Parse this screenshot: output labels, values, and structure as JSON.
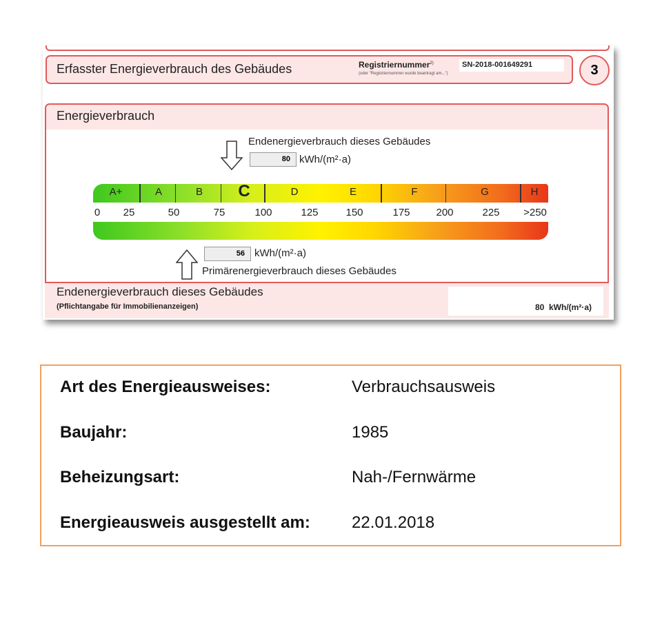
{
  "certificate": {
    "header_title": "Erfasster Energieverbrauch des Gebäudes",
    "registration_label": "Registriernummer",
    "registration_footnote": "2)",
    "registration_note": "(oder \"Registriernummer wurde beantragt am...\")",
    "registration_number": "SN-2018-001649291",
    "page_number": "3",
    "section_title": "Energieverbrauch",
    "final_energy_label": "Endenergieverbrauch dieses Gebäudes",
    "final_energy_value": "80",
    "unit": "kWh/(m²·a)",
    "primary_energy_label": "Primärenergieverbrauch dieses Gebäudes",
    "primary_energy_value": "56",
    "classes": [
      "A+",
      "A",
      "B",
      "C",
      "D",
      "E",
      "F",
      "G",
      "H"
    ],
    "current_class": "C",
    "scale_ticks": [
      "0",
      "25",
      "50",
      "75",
      "100",
      "125",
      "150",
      "175",
      "200",
      "225",
      ">250"
    ],
    "bottom_title": "Endenergieverbrauch dieses Gebäudes",
    "bottom_subtitle": "(Pflichtangabe für Immobilienanzeigen)",
    "bottom_value": "80  kWh/(m²·a)"
  },
  "info": [
    {
      "label": "Art des Energieausweises:",
      "value": "Verbrauchsausweis"
    },
    {
      "label": "Baujahr:",
      "value": "1985"
    },
    {
      "label": "Beheizungsart:",
      "value": "Nah-/Fernwärme"
    },
    {
      "label": "Energieausweis ausgestellt am:",
      "value": "22.01.2018"
    }
  ],
  "colors": {
    "frame": "#e05a5a",
    "header_bg": "#fde6e6",
    "info_border": "#f0a060"
  }
}
